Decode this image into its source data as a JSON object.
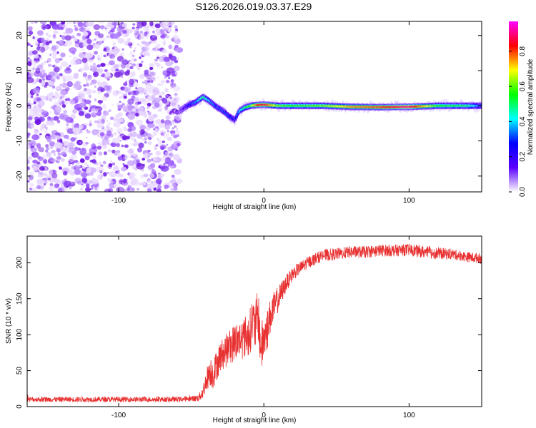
{
  "title": "S126.2026.019.03.37.E29",
  "chart_data": [
    {
      "type": "heatmap",
      "xlabel": "Height of straight line (km)",
      "ylabel": "Frequency (Hz)",
      "xlim": [
        -163,
        150
      ],
      "ylim": [
        -24.5,
        24
      ],
      "x_ticks": [
        -100,
        0,
        100
      ],
      "y_ticks": [
        -20,
        -10,
        0,
        10,
        20
      ],
      "colorbar": {
        "label": "Normalized spectral amplitude",
        "range": [
          0,
          0.97
        ],
        "ticks": [
          0,
          0.2,
          0.4,
          0.6,
          0.8
        ],
        "colors": [
          "#ffffff",
          "#5a00ff",
          "#0000ff",
          "#00ffff",
          "#00ff00",
          "#ffff00",
          "#ff0000",
          "#ff00ff"
        ]
      },
      "noise_region_x": [
        -163,
        -58
      ],
      "ridge": {
        "x": [
          -58,
          -52,
          -47,
          -42,
          -38,
          -33,
          -28,
          -24,
          -20,
          -17,
          -13,
          -9,
          -5,
          0,
          10,
          20,
          40,
          60,
          80,
          100,
          120,
          140,
          150
        ],
        "y": [
          -1.5,
          0.2,
          1,
          2.5,
          1.5,
          -0.2,
          -1.5,
          -3,
          -4,
          -1.5,
          -0.5,
          0,
          0.2,
          0.3,
          0,
          0,
          0,
          -0.3,
          -0.4,
          -0.3,
          0,
          0,
          0
        ],
        "amplitude": [
          0.1,
          0.25,
          0.35,
          0.5,
          0.4,
          0.3,
          0.3,
          0.3,
          0.25,
          0.4,
          0.5,
          0.6,
          0.8,
          0.85,
          0.6,
          0.55,
          0.6,
          0.75,
          0.8,
          0.9,
          0.55,
          0.5,
          0.3
        ]
      }
    },
    {
      "type": "line",
      "xlabel": "Height of straight line (km)",
      "ylabel": "SNR (10 * v/v)",
      "xlim": [
        -163,
        150
      ],
      "ylim": [
        0,
        237
      ],
      "x_ticks": [
        -100,
        0,
        100
      ],
      "y_ticks": [
        0,
        50,
        100,
        150,
        200
      ],
      "series": [
        {
          "color": "#e83030",
          "x": [
            -163,
            -140,
            -120,
            -100,
            -80,
            -60,
            -50,
            -45,
            -42,
            -40,
            -37,
            -35,
            -30,
            -25,
            -20,
            -15,
            -10,
            -8,
            -6,
            -4,
            -2,
            0,
            2,
            5,
            10,
            15,
            20,
            30,
            40,
            50,
            60,
            70,
            80,
            90,
            100,
            110,
            120,
            130,
            140,
            150
          ],
          "values": [
            10,
            10,
            10,
            10,
            10,
            10,
            11,
            12,
            20,
            35,
            50,
            45,
            70,
            80,
            90,
            95,
            100,
            120,
            110,
            130,
            80,
            95,
            105,
            130,
            150,
            170,
            185,
            200,
            210,
            212,
            215,
            215,
            217,
            217,
            218,
            215,
            213,
            212,
            208,
            206
          ],
          "noise": [
            3,
            3,
            3,
            3,
            3,
            3,
            3,
            4,
            8,
            12,
            18,
            18,
            18,
            20,
            22,
            24,
            26,
            28,
            28,
            30,
            30,
            28,
            25,
            20,
            15,
            10,
            8,
            7,
            7,
            7,
            7,
            7,
            7,
            7,
            7,
            7,
            7,
            6,
            6,
            6
          ]
        }
      ]
    }
  ]
}
